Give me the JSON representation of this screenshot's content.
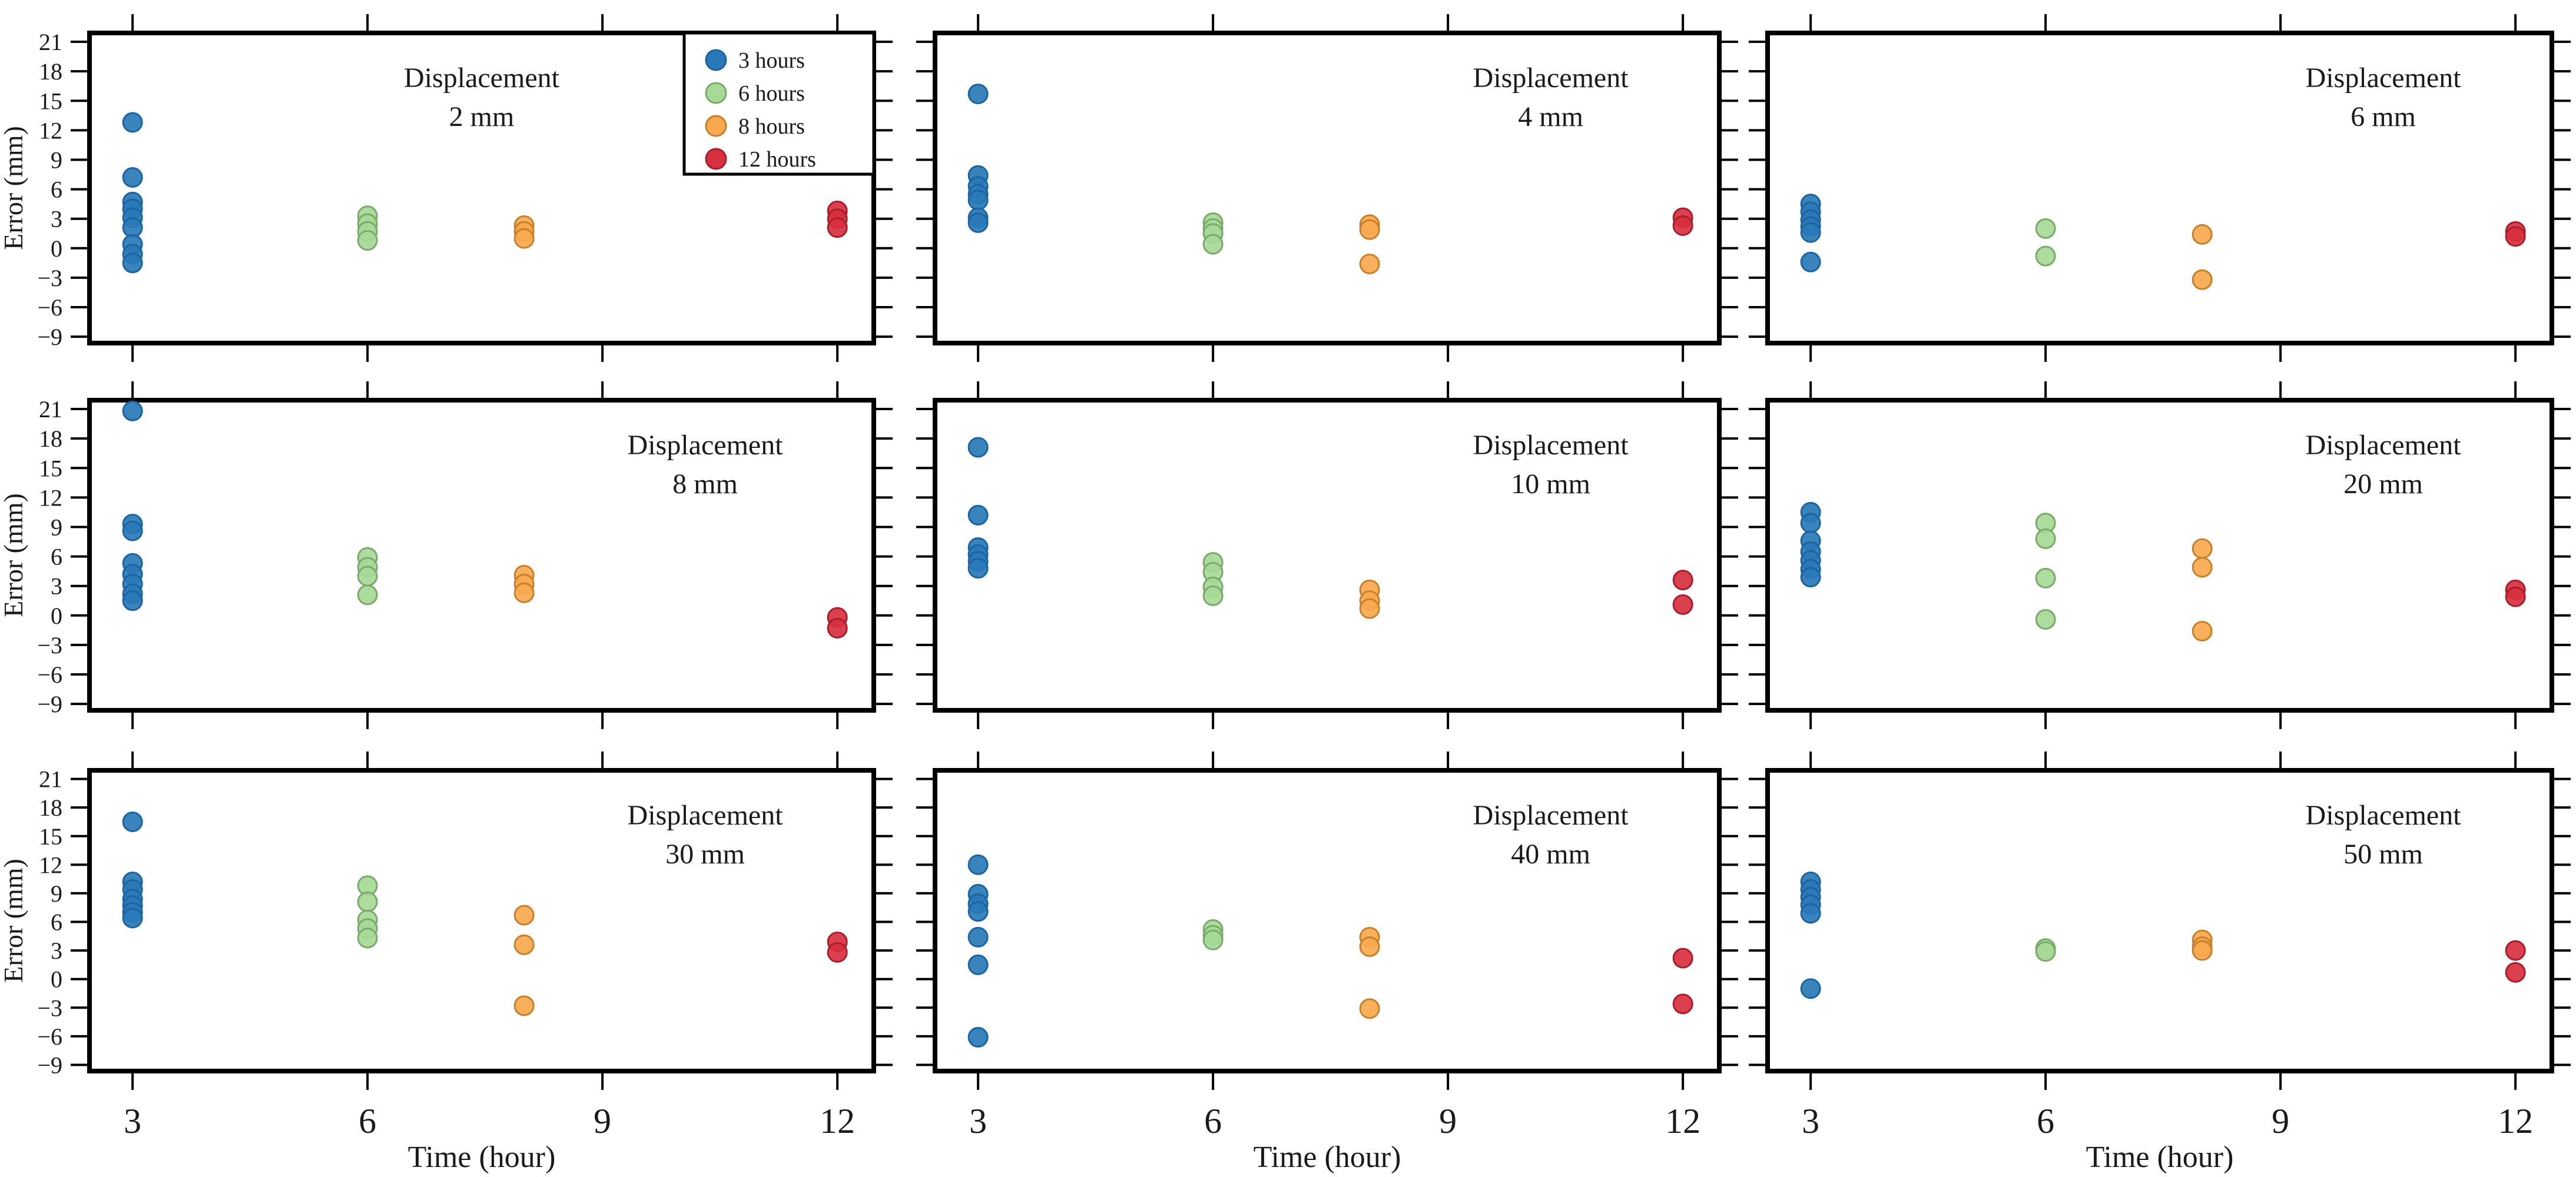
{
  "chart_data": {
    "type": "scatter",
    "title": "",
    "xlabel": "Time (hour)",
    "ylabel": "Error (mm)",
    "x_ticks": [
      3,
      6,
      9,
      12
    ],
    "y_ticks": [
      21,
      18,
      15,
      12,
      9,
      6,
      3,
      0,
      -3,
      -6,
      -9
    ],
    "x_range": [
      2.45,
      12.45
    ],
    "y_range": [
      -9.65,
      21.9
    ],
    "grid": false,
    "legend": {
      "position": "top-right-first-subplot",
      "items": [
        {
          "label": "3 hours",
          "x": 3,
          "fill": "#2979B9",
          "edge": "#1C639F"
        },
        {
          "label": "6 hours",
          "x": 6,
          "fill": "#A6D996",
          "edge": "#7BA86B"
        },
        {
          "label": "8 hours",
          "x": 8,
          "fill": "#F8A94F",
          "edge": "#C77F2A"
        },
        {
          "label": "12 hours",
          "x": 12,
          "fill": "#D7303F",
          "edge": "#A81E2C"
        }
      ]
    },
    "frame_color": "#000000",
    "subplots": [
      {
        "title_line1": "Displacement",
        "title_line2": "2 mm",
        "series": {
          "3 hours": [
            12.8,
            7.2,
            4.7,
            4.0,
            3.1,
            2.1,
            0.4,
            -0.6,
            -1.5
          ],
          "6 hours": [
            3.3,
            2.5,
            1.7,
            0.8
          ],
          "8 hours": [
            2.3,
            1.7,
            1.0
          ],
          "12 hours": [
            3.8,
            3.0,
            2.1
          ]
        }
      },
      {
        "title_line1": "Displacement",
        "title_line2": "4 mm",
        "series": {
          "3 hours": [
            15.7,
            7.4,
            6.3,
            5.5,
            4.9,
            3.1,
            2.6
          ],
          "6 hours": [
            2.6,
            2.0,
            1.5,
            0.4
          ],
          "8 hours": [
            2.4,
            1.9,
            -1.6
          ],
          "12 hours": [
            3.1,
            2.3
          ]
        }
      },
      {
        "title_line1": "Displacement",
        "title_line2": "6 mm",
        "series": {
          "3 hours": [
            4.5,
            3.7,
            2.9,
            2.2,
            1.6,
            -1.4
          ],
          "6 hours": [
            2.0,
            -0.8
          ],
          "8 hours": [
            1.4,
            -3.2
          ],
          "12 hours": [
            1.7,
            1.2
          ]
        }
      },
      {
        "title_line1": "Displacement",
        "title_line2": "8 mm",
        "series": {
          "3 hours": [
            20.8,
            9.3,
            8.6,
            5.3,
            4.2,
            3.2,
            2.2,
            1.5
          ],
          "6 hours": [
            5.9,
            4.9,
            4.0,
            2.1
          ],
          "8 hours": [
            4.1,
            3.2,
            2.3
          ],
          "12 hours": [
            -0.2,
            -1.3
          ]
        }
      },
      {
        "title_line1": "Displacement",
        "title_line2": "10 mm",
        "series": {
          "3 hours": [
            17.1,
            10.2,
            6.9,
            6.2,
            5.5,
            4.8
          ],
          "6 hours": [
            5.4,
            4.4,
            2.9,
            2.0
          ],
          "8 hours": [
            2.6,
            1.5,
            0.7
          ],
          "12 hours": [
            3.6,
            1.1
          ]
        }
      },
      {
        "title_line1": "Displacement",
        "title_line2": "20 mm",
        "series": {
          "3 hours": [
            10.5,
            9.4,
            7.6,
            6.5,
            5.6,
            4.7,
            3.9
          ],
          "6 hours": [
            9.4,
            7.8,
            3.8,
            -0.4
          ],
          "8 hours": [
            6.8,
            4.9,
            -1.6
          ],
          "12 hours": [
            2.6,
            1.9
          ]
        }
      },
      {
        "title_line1": "Displacement",
        "title_line2": "30 mm",
        "series": {
          "3 hours": [
            16.5,
            10.2,
            9.4,
            8.4,
            7.7,
            7.0,
            6.4
          ],
          "6 hours": [
            9.8,
            8.1,
            6.2,
            5.3,
            4.3
          ],
          "8 hours": [
            6.7,
            3.6,
            -2.8
          ],
          "12 hours": [
            3.9,
            2.8
          ]
        }
      },
      {
        "title_line1": "Displacement",
        "title_line2": "40 mm",
        "series": {
          "3 hours": [
            12.0,
            8.9,
            7.9,
            7.1,
            4.4,
            1.5,
            -6.1
          ],
          "6 hours": [
            5.2,
            4.6,
            4.1
          ],
          "8 hours": [
            4.4,
            3.4,
            -3.1
          ],
          "12 hours": [
            2.2,
            -2.6
          ]
        }
      },
      {
        "title_line1": "Displacement",
        "title_line2": "50 mm",
        "series": {
          "3 hours": [
            10.2,
            9.4,
            8.6,
            7.8,
            6.9,
            -1.0
          ],
          "6 hours": [
            3.2,
            2.9
          ],
          "8 hours": [
            4.1,
            3.4,
            3.0
          ],
          "12 hours": [
            3.0,
            0.7
          ]
        }
      }
    ]
  }
}
